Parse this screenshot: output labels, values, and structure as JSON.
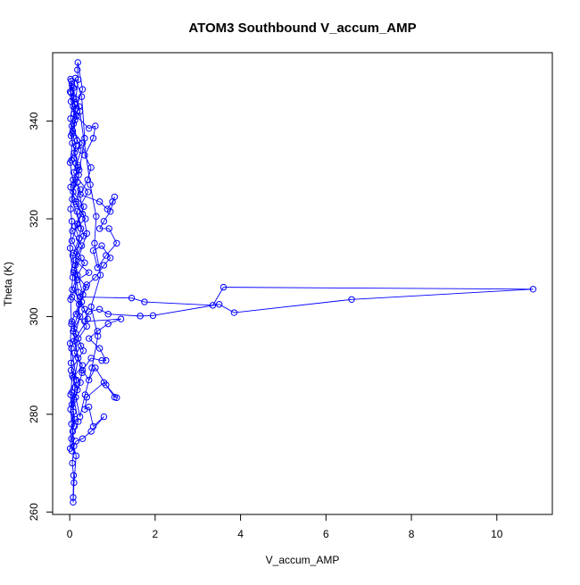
{
  "chart_data": {
    "type": "scatter",
    "title": "ATOM3 Southbound V_accum_AMP",
    "xlabel": "V_accum_AMP",
    "ylabel": "Theta (K)",
    "xlim": [
      -0.4,
      11.3
    ],
    "ylim": [
      259.5,
      354
    ],
    "xticks": [
      0,
      2,
      4,
      6,
      8,
      10
    ],
    "yticks": [
      260,
      280,
      300,
      320,
      340
    ],
    "xtick_labels": [
      "0",
      "2",
      "4",
      "6",
      "8",
      "10"
    ],
    "ytick_labels": [
      "260",
      "280",
      "300",
      "320",
      "340"
    ],
    "marker": "open-circle",
    "connected": true,
    "grid": false,
    "legend": "none",
    "color": "#0000ff",
    "series": [
      {
        "points": [
          [
            0.02,
            348.6
          ],
          [
            0.05,
            347.5
          ],
          [
            0.03,
            345.8
          ],
          [
            0.08,
            343.0
          ],
          [
            0.12,
            340.2
          ],
          [
            0.06,
            337.5
          ],
          [
            0.15,
            335.0
          ],
          [
            0.1,
            332.4
          ],
          [
            0.2,
            330.5
          ],
          [
            0.08,
            328.0
          ],
          [
            0.25,
            326.0
          ],
          [
            0.14,
            323.5
          ],
          [
            0.3,
            321.0
          ],
          [
            0.12,
            318.5
          ],
          [
            0.22,
            316.0
          ],
          [
            0.09,
            313.0
          ],
          [
            0.35,
            311.0
          ],
          [
            0.18,
            308.5
          ],
          [
            0.06,
            305.5
          ],
          [
            0.28,
            303.0
          ],
          [
            0.15,
            300.5
          ],
          [
            0.4,
            298.0
          ],
          [
            0.2,
            295.5
          ],
          [
            0.11,
            292.5
          ],
          [
            0.3,
            290.0
          ],
          [
            0.08,
            287.5
          ],
          [
            0.18,
            285.0
          ],
          [
            0.05,
            282.0
          ],
          [
            0.12,
            279.0
          ],
          [
            0.07,
            276.5
          ],
          [
            0.1,
            273.5
          ],
          [
            0.06,
            270.0
          ],
          [
            0.09,
            267.5
          ],
          [
            0.08,
            263.0
          ],
          [
            0.08,
            262.0
          ],
          [
            0.1,
            266.0
          ],
          [
            0.15,
            271.5
          ],
          [
            0.04,
            275.0
          ],
          [
            0.2,
            278.5
          ],
          [
            0.1,
            283.0
          ],
          [
            0.25,
            286.5
          ],
          [
            0.03,
            289.0
          ],
          [
            0.32,
            293.0
          ],
          [
            0.14,
            296.5
          ],
          [
            0.05,
            299.0
          ],
          [
            0.22,
            302.5
          ],
          [
            0.38,
            306.0
          ],
          [
            0.1,
            309.5
          ],
          [
            0.27,
            312.0
          ],
          [
            0.05,
            315.5
          ],
          [
            0.18,
            319.0
          ],
          [
            0.33,
            322.5
          ],
          [
            0.08,
            325.5
          ],
          [
            0.21,
            329.0
          ],
          [
            0.04,
            332.0
          ],
          [
            0.17,
            336.0
          ],
          [
            0.09,
            339.5
          ],
          [
            0.24,
            342.0
          ],
          [
            0.14,
            344.5
          ],
          [
            0.2,
            348.5
          ],
          [
            0.18,
            350.5
          ],
          [
            0.19,
            352.0
          ],
          [
            0.3,
            346.5
          ],
          [
            0.1,
            341.5
          ],
          [
            0.45,
            338.5
          ],
          [
            0.6,
            339.0
          ],
          [
            0.55,
            336.5
          ],
          [
            0.35,
            333.0
          ],
          [
            0.5,
            330.5
          ],
          [
            0.42,
            328.0
          ],
          [
            0.25,
            325.0
          ],
          [
            0.7,
            323.5
          ],
          [
            0.88,
            322.0
          ],
          [
            1.0,
            323.5
          ],
          [
            1.05,
            324.5
          ],
          [
            0.95,
            321.5
          ],
          [
            0.8,
            319.5
          ],
          [
            0.7,
            318.0
          ],
          [
            0.92,
            318.0
          ],
          [
            1.1,
            315.0
          ],
          [
            0.85,
            312.5
          ],
          [
            0.65,
            310.0
          ],
          [
            0.55,
            313.5
          ],
          [
            0.75,
            314.5
          ],
          [
            0.95,
            312.0
          ],
          [
            0.8,
            310.5
          ],
          [
            0.6,
            308.0
          ],
          [
            0.4,
            306.5
          ],
          [
            0.25,
            304.0
          ],
          [
            1.45,
            303.8
          ],
          [
            1.75,
            303.0
          ],
          [
            3.35,
            302.3
          ],
          [
            3.6,
            306.0
          ],
          [
            10.85,
            305.6
          ],
          [
            6.6,
            303.5
          ],
          [
            3.85,
            300.8
          ],
          [
            3.5,
            302.5
          ],
          [
            1.95,
            300.2
          ],
          [
            1.65,
            300.1
          ],
          [
            0.9,
            300.5
          ],
          [
            0.7,
            301.5
          ],
          [
            0.45,
            301.0
          ],
          [
            0.35,
            299.0
          ],
          [
            1.2,
            299.5
          ],
          [
            0.9,
            298.5
          ],
          [
            0.65,
            297.0
          ],
          [
            0.45,
            295.5
          ],
          [
            0.7,
            293.5
          ],
          [
            0.85,
            291.0
          ],
          [
            0.75,
            291.0
          ],
          [
            0.5,
            291.5
          ],
          [
            0.3,
            289.0
          ],
          [
            0.45,
            287.0
          ],
          [
            0.6,
            289.5
          ],
          [
            0.85,
            286.0
          ],
          [
            1.05,
            283.5
          ],
          [
            1.1,
            283.4
          ],
          [
            0.8,
            286.5
          ],
          [
            0.4,
            283.5
          ],
          [
            0.35,
            281.0
          ],
          [
            0.45,
            281.5
          ],
          [
            0.55,
            277.5
          ],
          [
            0.8,
            279.5
          ],
          [
            0.5,
            276.5
          ],
          [
            0.3,
            275.0
          ],
          [
            0.15,
            274.5
          ],
          [
            0.05,
            272.5
          ],
          [
            0.08,
            280.5
          ],
          [
            0.12,
            285.5
          ],
          [
            0.03,
            290.5
          ],
          [
            0.26,
            294.0
          ],
          [
            0.1,
            297.5
          ],
          [
            0.35,
            301.5
          ],
          [
            0.05,
            304.0
          ],
          [
            0.18,
            307.5
          ],
          [
            0.45,
            309.0
          ],
          [
            0.12,
            311.5
          ],
          [
            0.28,
            314.5
          ],
          [
            0.06,
            317.5
          ],
          [
            0.37,
            320.0
          ],
          [
            0.15,
            323.0
          ],
          [
            0.02,
            326.5
          ],
          [
            0.22,
            330.0
          ],
          [
            0.11,
            333.5
          ],
          [
            0.3,
            335.5
          ],
          [
            0.07,
            338.0
          ],
          [
            0.16,
            341.0
          ],
          [
            0.03,
            344.0
          ],
          [
            0.09,
            346.8
          ],
          [
            0.13,
            348.8
          ],
          [
            0.28,
            345.0
          ],
          [
            0.35,
            336.5
          ],
          [
            0.18,
            327.5
          ],
          [
            0.4,
            317.0
          ],
          [
            0.09,
            309.0
          ],
          [
            0.24,
            300.0
          ],
          [
            0.04,
            293.5
          ],
          [
            0.16,
            287.0
          ],
          [
            0.02,
            281.0
          ],
          [
            0.11,
            277.5
          ],
          [
            0.05,
            284.5
          ],
          [
            0.2,
            291.5
          ],
          [
            0.08,
            297.0
          ],
          [
            0.31,
            304.5
          ],
          [
            0.13,
            310.5
          ],
          [
            0.26,
            318.0
          ],
          [
            0.06,
            324.0
          ],
          [
            0.19,
            331.0
          ],
          [
            0.03,
            337.0
          ],
          [
            0.12,
            343.5
          ],
          [
            0.06,
            347.0
          ],
          [
            0.22,
            343.0
          ],
          [
            0.48,
            327.0
          ],
          [
            0.62,
            320.5
          ],
          [
            0.58,
            315.0
          ],
          [
            0.72,
            308.5
          ],
          [
            0.5,
            302.0
          ],
          [
            0.66,
            296.0
          ],
          [
            0.52,
            289.5
          ],
          [
            0.36,
            284.0
          ],
          [
            0.24,
            279.5
          ],
          [
            0.14,
            283.5
          ],
          [
            0.29,
            288.5
          ],
          [
            0.1,
            295.0
          ],
          [
            0.42,
            299.5
          ],
          [
            0.2,
            305.0
          ],
          [
            0.07,
            312.5
          ],
          [
            0.33,
            316.5
          ],
          [
            0.17,
            321.5
          ],
          [
            0.43,
            325.5
          ],
          [
            0.09,
            329.5
          ],
          [
            0.27,
            334.0
          ],
          [
            0.05,
            339.0
          ],
          [
            0.14,
            342.5
          ],
          [
            0.01,
            346.0
          ],
          [
            0.04,
            348.2
          ],
          [
            0.08,
            344.8
          ],
          [
            0.02,
            340.5
          ],
          [
            0.06,
            335.5
          ],
          [
            0.01,
            331.5
          ],
          [
            0.09,
            327.0
          ],
          [
            0.02,
            322.0
          ],
          [
            0.05,
            319.5
          ],
          [
            0.01,
            314.0
          ],
          [
            0.07,
            308.0
          ],
          [
            0.02,
            303.5
          ],
          [
            0.04,
            298.5
          ],
          [
            0.01,
            294.5
          ],
          [
            0.06,
            288.0
          ],
          [
            0.02,
            284.0
          ],
          [
            0.04,
            278.0
          ],
          [
            0.01,
            273.0
          ]
        ]
      }
    ]
  }
}
